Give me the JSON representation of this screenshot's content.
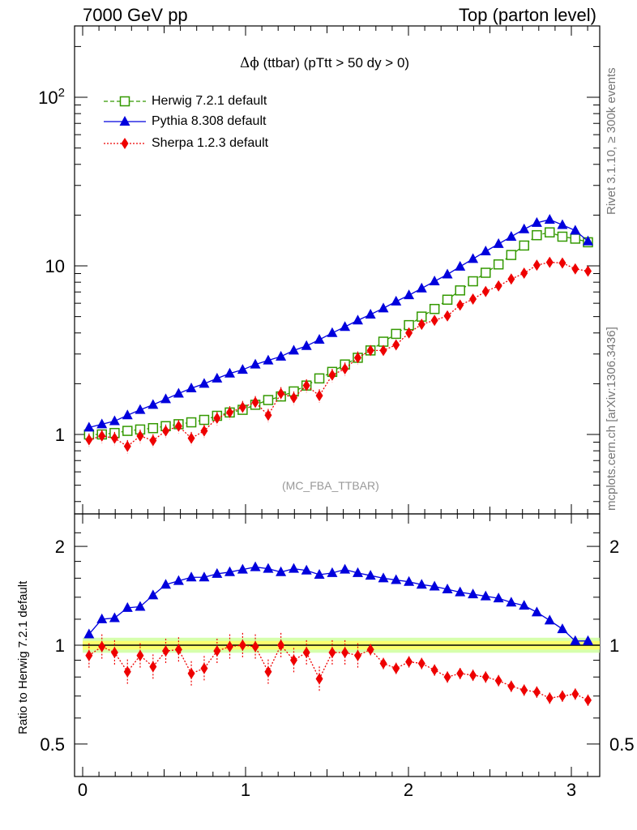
{
  "header": {
    "left": "7000 GeV pp",
    "right": "Top (parton level)"
  },
  "side_labels": {
    "rivet": "Rivet 3.1.10, ≥ 300k events",
    "mcplots": "mcplots.cern.ch [arXiv:1306.3436]"
  },
  "chart_data": [
    {
      "type": "line",
      "title_symbol": "Δϕ",
      "title": "(ttbar) (pTtt > 50 dy > 0)",
      "watermark": "(MC_FBA_TTBAR)",
      "xlabel": "",
      "ylabel": "",
      "yscale": "log",
      "ylim": [
        0.35,
        250
      ],
      "xlim": [
        -0.06,
        3.2
      ],
      "xticks": [
        "0",
        "1",
        "2",
        "3"
      ],
      "yticks": [
        "1",
        "10",
        "10^2"
      ],
      "legend_position": "top-left",
      "series": [
        {
          "name": "Herwig 7.2.1 default",
          "color": "#339900",
          "marker": "open-square",
          "line": "dashed",
          "x": [
            0.039,
            0.118,
            0.196,
            0.275,
            0.353,
            0.432,
            0.51,
            0.589,
            0.667,
            0.746,
            0.825,
            0.903,
            0.982,
            1.06,
            1.139,
            1.217,
            1.296,
            1.374,
            1.453,
            1.532,
            1.61,
            1.689,
            1.767,
            1.846,
            1.924,
            2.003,
            2.081,
            2.16,
            2.239,
            2.317,
            2.396,
            2.474,
            2.553,
            2.631,
            2.71,
            2.788,
            2.867,
            2.945,
            3.024,
            3.102
          ],
          "y": [
            1.0,
            1.0,
            1.02,
            1.05,
            1.07,
            1.09,
            1.12,
            1.15,
            1.18,
            1.22,
            1.29,
            1.35,
            1.4,
            1.5,
            1.6,
            1.68,
            1.8,
            1.95,
            2.15,
            2.35,
            2.6,
            2.85,
            3.15,
            3.55,
            3.95,
            4.45,
            5.0,
            5.55,
            6.3,
            7.15,
            8.1,
            9.1,
            10.2,
            11.6,
            13.2,
            15.2,
            15.8,
            14.9,
            14.5,
            13.8
          ]
        },
        {
          "name": "Pythia 8.308 default",
          "color": "#0000dd",
          "marker": "filled-triangle",
          "line": "solid",
          "x": [
            0.039,
            0.118,
            0.196,
            0.275,
            0.353,
            0.432,
            0.51,
            0.589,
            0.667,
            0.746,
            0.825,
            0.903,
            0.982,
            1.06,
            1.139,
            1.217,
            1.296,
            1.374,
            1.453,
            1.532,
            1.61,
            1.689,
            1.767,
            1.846,
            1.924,
            2.003,
            2.081,
            2.16,
            2.239,
            2.317,
            2.396,
            2.474,
            2.553,
            2.631,
            2.71,
            2.788,
            2.867,
            2.945,
            3.024,
            3.102
          ],
          "y": [
            1.1,
            1.15,
            1.2,
            1.3,
            1.4,
            1.5,
            1.62,
            1.75,
            1.88,
            2.0,
            2.15,
            2.3,
            2.42,
            2.6,
            2.75,
            2.9,
            3.15,
            3.35,
            3.65,
            4.0,
            4.35,
            4.75,
            5.15,
            5.6,
            6.15,
            6.7,
            7.35,
            8.1,
            8.9,
            9.9,
            11.0,
            12.2,
            13.5,
            14.9,
            16.5,
            18.0,
            18.8,
            17.5,
            16.2,
            14.0
          ]
        },
        {
          "name": "Sherpa 1.2.3 default",
          "color": "#ee0000",
          "marker": "filled-diamond",
          "line": "dotted",
          "x": [
            0.039,
            0.118,
            0.196,
            0.275,
            0.353,
            0.432,
            0.51,
            0.589,
            0.667,
            0.746,
            0.825,
            0.903,
            0.982,
            1.06,
            1.139,
            1.217,
            1.296,
            1.374,
            1.453,
            1.532,
            1.61,
            1.689,
            1.767,
            1.846,
            1.924,
            2.003,
            2.081,
            2.16,
            2.239,
            2.317,
            2.396,
            2.474,
            2.553,
            2.631,
            2.71,
            2.788,
            2.867,
            2.945,
            3.024,
            3.102
          ],
          "y": [
            0.93,
            0.98,
            0.95,
            0.85,
            0.98,
            0.92,
            1.05,
            1.12,
            0.95,
            1.05,
            1.25,
            1.35,
            1.45,
            1.55,
            1.3,
            1.75,
            1.65,
            1.95,
            1.7,
            2.25,
            2.45,
            2.85,
            3.15,
            3.15,
            3.4,
            4.0,
            4.5,
            4.75,
            5.05,
            5.85,
            6.35,
            7.05,
            7.6,
            8.35,
            9.05,
            10.1,
            10.5,
            10.4,
            9.6,
            9.3
          ]
        }
      ]
    },
    {
      "type": "line",
      "title": "",
      "ylabel": "Ratio to Herwig 7.2.1 default",
      "xlabel": "",
      "yscale": "log",
      "ylim": [
        0.4,
        2.5
      ],
      "xlim": [
        -0.06,
        3.2
      ],
      "xticks": [
        "0",
        "1",
        "2",
        "3"
      ],
      "yticks": [
        "0.5",
        "1",
        "2"
      ],
      "reference_band": {
        "low": 0.97,
        "high": 1.03,
        "color": "#ffff66"
      },
      "series": [
        {
          "name": "Pythia 8.308 default",
          "color": "#0000dd",
          "marker": "filled-triangle",
          "line": "solid",
          "x": [
            0.039,
            0.118,
            0.196,
            0.275,
            0.353,
            0.432,
            0.51,
            0.589,
            0.667,
            0.746,
            0.825,
            0.903,
            0.982,
            1.06,
            1.139,
            1.217,
            1.296,
            1.374,
            1.453,
            1.532,
            1.61,
            1.689,
            1.767,
            1.846,
            1.924,
            2.003,
            2.081,
            2.16,
            2.239,
            2.317,
            2.396,
            2.474,
            2.553,
            2.631,
            2.71,
            2.788,
            2.867,
            2.945,
            3.024,
            3.102
          ],
          "y": [
            1.08,
            1.2,
            1.21,
            1.3,
            1.31,
            1.42,
            1.53,
            1.57,
            1.61,
            1.61,
            1.65,
            1.67,
            1.7,
            1.73,
            1.71,
            1.67,
            1.71,
            1.69,
            1.64,
            1.66,
            1.7,
            1.66,
            1.63,
            1.6,
            1.58,
            1.56,
            1.53,
            1.51,
            1.48,
            1.45,
            1.43,
            1.41,
            1.39,
            1.35,
            1.32,
            1.26,
            1.19,
            1.12,
            1.03,
            1.03
          ]
        },
        {
          "name": "Sherpa 1.2.3 default",
          "color": "#ee0000",
          "marker": "filled-diamond",
          "line": "dotted",
          "x": [
            0.039,
            0.118,
            0.196,
            0.275,
            0.353,
            0.432,
            0.51,
            0.589,
            0.667,
            0.746,
            0.825,
            0.903,
            0.982,
            1.06,
            1.139,
            1.217,
            1.296,
            1.374,
            1.453,
            1.532,
            1.61,
            1.689,
            1.767,
            1.846,
            1.924,
            2.003,
            2.081,
            2.16,
            2.239,
            2.317,
            2.396,
            2.474,
            2.553,
            2.631,
            2.71,
            2.788,
            2.867,
            2.945,
            3.024,
            3.102
          ],
          "y": [
            0.93,
            0.99,
            0.95,
            0.83,
            0.93,
            0.86,
            0.96,
            0.97,
            0.82,
            0.85,
            0.96,
            0.99,
            1.0,
            0.99,
            0.83,
            1.0,
            0.9,
            0.95,
            0.79,
            0.95,
            0.95,
            0.93,
            0.97,
            0.88,
            0.85,
            0.89,
            0.88,
            0.84,
            0.8,
            0.82,
            0.81,
            0.8,
            0.78,
            0.75,
            0.73,
            0.72,
            0.69,
            0.7,
            0.71,
            0.68
          ]
        }
      ]
    }
  ]
}
